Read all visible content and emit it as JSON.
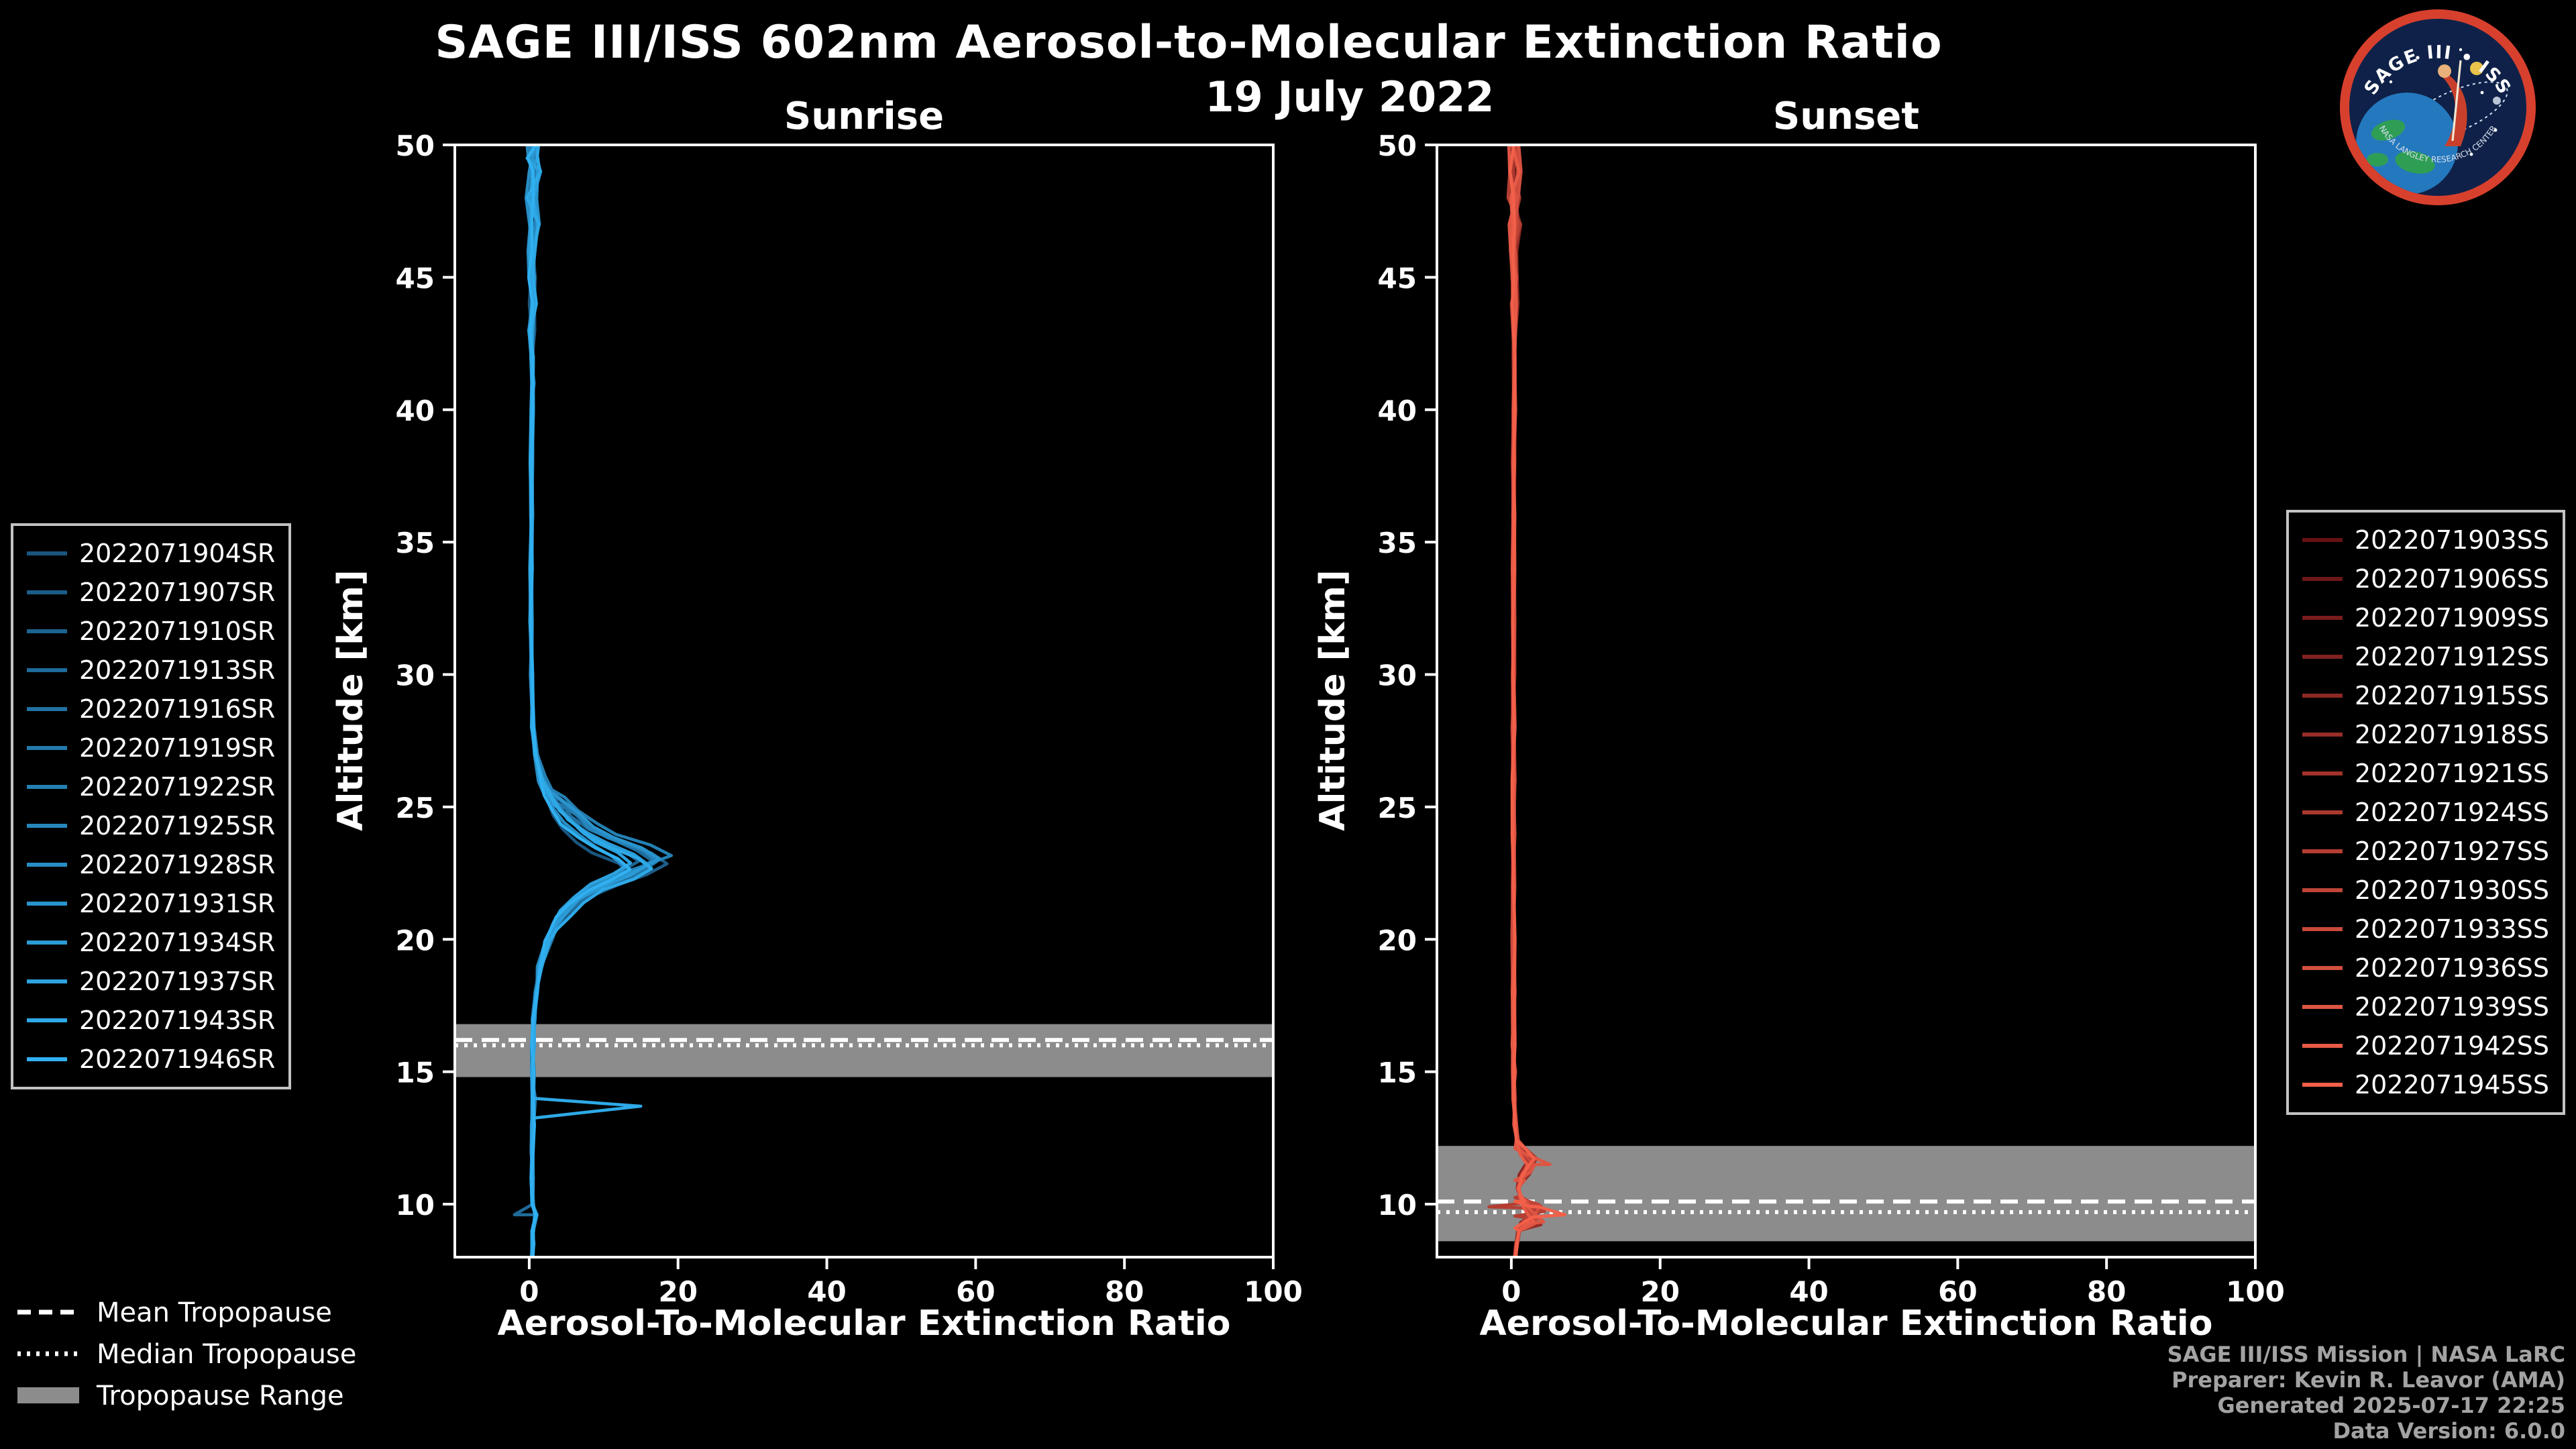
{
  "header": {
    "title": "SAGE III/ISS 602nm Aerosol-to-Molecular Extinction Ratio",
    "subtitle": "19 July 2022"
  },
  "footer": {
    "lines": [
      "SAGE III/ISS Mission | NASA LaRC",
      "Preparer: Kevin R. Leavor (AMA)",
      "Generated 2025-07-17 22:25",
      "Data Version: 6.0.0"
    ]
  },
  "tropopause_legend": {
    "mean_label": "Mean Tropopause",
    "median_label": "Median Tropopause",
    "range_label": "Tropopause Range"
  },
  "logo": {
    "title": "SAGE III • ISS",
    "subtitle": "NASA LANGLEY RESEARCH CENTER"
  },
  "chart_data": {
    "type": "line",
    "title": "SAGE III/ISS 602nm Aerosol-to-Molecular Extinction Ratio",
    "subtitle": "19 July 2022",
    "xlabel": "Aerosol-To-Molecular Extinction Ratio",
    "ylabel": "Altitude [km]",
    "xlim": [
      -10,
      100
    ],
    "ylim": [
      8,
      50
    ],
    "xticks": [
      0,
      20,
      40,
      60,
      80,
      100
    ],
    "yticks": [
      10,
      15,
      20,
      25,
      30,
      35,
      40,
      45,
      50
    ],
    "grid": false,
    "legend_position": "outside",
    "panels": [
      {
        "title": "Sunrise",
        "color_start": "#1a567f",
        "color_end": "#30b0f0",
        "series": [
          "2022071904SR",
          "2022071907SR",
          "2022071910SR",
          "2022071913SR",
          "2022071916SR",
          "2022071919SR",
          "2022071922SR",
          "2022071925SR",
          "2022071928SR",
          "2022071931SR",
          "2022071934SR",
          "2022071937SR",
          "2022071943SR",
          "2022071946SR"
        ],
        "base_profile": [
          [
            8,
            0.4
          ],
          [
            8.5,
            0.5
          ],
          [
            9,
            0.5
          ],
          [
            9.6,
            0.9
          ],
          [
            10,
            0.5
          ],
          [
            11,
            0.4
          ],
          [
            12,
            0.4
          ],
          [
            13,
            0.5
          ],
          [
            14,
            0.6
          ],
          [
            15,
            0.5
          ],
          [
            16,
            0.5
          ],
          [
            17,
            0.6
          ],
          [
            18,
            0.9
          ],
          [
            19,
            1.5
          ],
          [
            20,
            2.6
          ],
          [
            20.5,
            3.4
          ],
          [
            21,
            4.8
          ],
          [
            21.5,
            6.5
          ],
          [
            22,
            9.5
          ],
          [
            22.4,
            13
          ],
          [
            22.8,
            15.5
          ],
          [
            23.2,
            13.5
          ],
          [
            23.6,
            10
          ],
          [
            24,
            7.5
          ],
          [
            24.5,
            5.5
          ],
          [
            25,
            3.8
          ],
          [
            25.5,
            2.6
          ],
          [
            26,
            1.7
          ],
          [
            27,
            0.9
          ],
          [
            28,
            0.5
          ],
          [
            30,
            0.3
          ],
          [
            32,
            0.25
          ],
          [
            34,
            0.25
          ],
          [
            36,
            0.3
          ],
          [
            38,
            0.3
          ],
          [
            40,
            0.4
          ],
          [
            41,
            0.5
          ],
          [
            42,
            0.4
          ],
          [
            43,
            0.3
          ],
          [
            44,
            0.5
          ],
          [
            45,
            0.4
          ],
          [
            46,
            0.3
          ],
          [
            47,
            0.6
          ],
          [
            48,
            0.3
          ],
          [
            49,
            0.8
          ],
          [
            49.5,
            0.4
          ],
          [
            50,
            0.5
          ]
        ],
        "spikes": [
          {
            "series": 12,
            "alt": 13.7,
            "value": 15,
            "width": 0.45
          },
          {
            "series": 3,
            "alt": 9.6,
            "value": -2,
            "width": 0.4
          }
        ],
        "tropopause": {
          "mean": 16.2,
          "median": 16.0,
          "range": [
            14.8,
            16.8
          ]
        }
      },
      {
        "title": "Sunset",
        "color_start": "#641114",
        "color_end": "#f2604a",
        "series": [
          "2022071903SS",
          "2022071906SS",
          "2022071909SS",
          "2022071912SS",
          "2022071915SS",
          "2022071918SS",
          "2022071921SS",
          "2022071924SS",
          "2022071927SS",
          "2022071930SS",
          "2022071933SS",
          "2022071936SS",
          "2022071939SS",
          "2022071942SS",
          "2022071945SS"
        ],
        "base_profile": [
          [
            8,
            0.5
          ],
          [
            8.5,
            0.7
          ],
          [
            9,
            1.0
          ],
          [
            9.2,
            1.6
          ],
          [
            9.4,
            2.8
          ],
          [
            9.6,
            3.6
          ],
          [
            9.8,
            2.4
          ],
          [
            10,
            1.8
          ],
          [
            10.3,
            1.2
          ],
          [
            10.6,
            0.9
          ],
          [
            11,
            1.4
          ],
          [
            11.3,
            2.2
          ],
          [
            11.6,
            2.8
          ],
          [
            12,
            1.6
          ],
          [
            12.4,
            0.8
          ],
          [
            13,
            0.5
          ],
          [
            14,
            0.4
          ],
          [
            15,
            0.35
          ],
          [
            16,
            0.3
          ],
          [
            18,
            0.3
          ],
          [
            20,
            0.3
          ],
          [
            22,
            0.3
          ],
          [
            24,
            0.3
          ],
          [
            26,
            0.3
          ],
          [
            28,
            0.3
          ],
          [
            30,
            0.3
          ],
          [
            32,
            0.3
          ],
          [
            34,
            0.3
          ],
          [
            36,
            0.35
          ],
          [
            38,
            0.3
          ],
          [
            40,
            0.4
          ],
          [
            42,
            0.35
          ],
          [
            44,
            0.45
          ],
          [
            45,
            0.4
          ],
          [
            46,
            0.35
          ],
          [
            47,
            0.5
          ],
          [
            48,
            0.35
          ],
          [
            49,
            0.55
          ],
          [
            50,
            0.4
          ]
        ],
        "spikes": [
          {
            "series": 14,
            "alt": 9.6,
            "value": 7.2,
            "width": 0.5
          },
          {
            "series": 12,
            "alt": 11.5,
            "value": 5.2,
            "width": 0.6
          },
          {
            "series": 8,
            "alt": 9.9,
            "value": -3,
            "width": 0.35
          }
        ],
        "tropopause": {
          "mean": 10.1,
          "median": 9.7,
          "range": [
            8.6,
            12.2
          ]
        }
      }
    ]
  }
}
